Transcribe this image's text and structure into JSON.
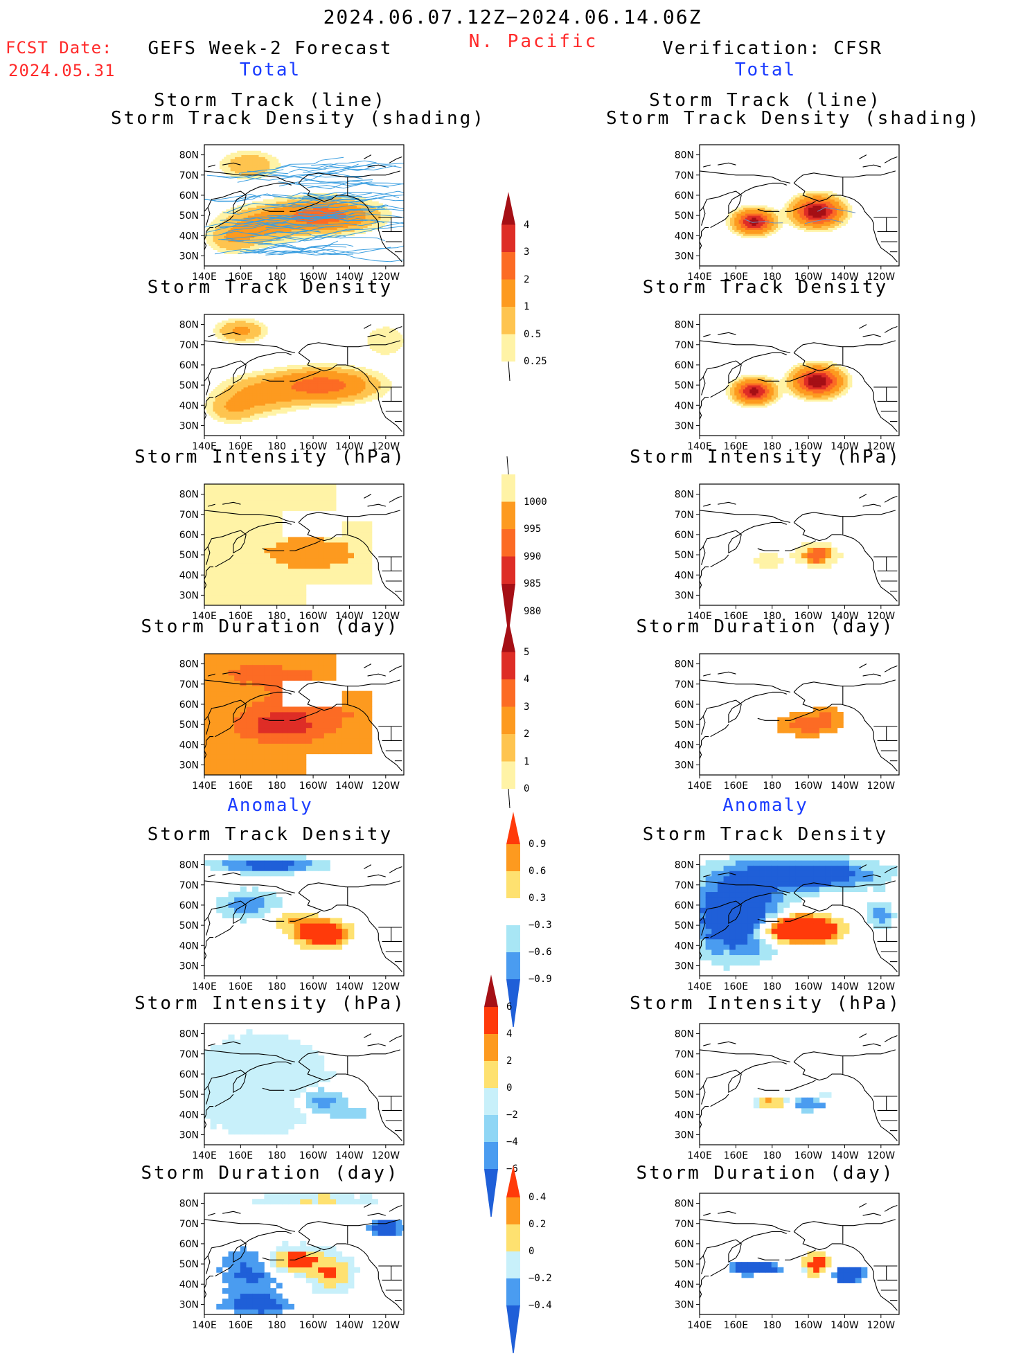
{
  "header": {
    "period": "2024.06.07.12Z−2024.06.14.06Z",
    "region": "N. Pacific",
    "fcst_label": "FCST Date:",
    "fcst_date": "2024.05.31",
    "left_title": "GEFS Week-2 Forecast",
    "right_title": "Verification: CFSR",
    "total_left": "Total",
    "total_right": "Total",
    "anomaly_left": "Anomaly",
    "anomaly_right": "Anomaly"
  },
  "panel_titles": {
    "track": "Storm Track (line)",
    "track_density_shading": "Storm Track Density (shading)",
    "density": "Storm Track Density",
    "intensity": "Storm Intensity (hPa)",
    "duration": "Storm Duration (day)"
  },
  "axes": {
    "lon_ticks": [
      "140E",
      "160E",
      "180",
      "160W",
      "140W",
      "120W"
    ],
    "lat_ticks": [
      "80N",
      "70N",
      "60N",
      "50N",
      "40N",
      "30N"
    ]
  },
  "colorbars": {
    "density": {
      "labels": [
        "4",
        "3",
        "2",
        "1",
        "0.5",
        "0.25"
      ],
      "colors": [
        "#a50f15",
        "#de2d26",
        "#fc6b24",
        "#fd9a1f",
        "#fec44f",
        "#fff3a6"
      ]
    },
    "intensity": {
      "labels": [
        "1000",
        "995",
        "990",
        "985",
        "980"
      ],
      "colors": [
        "#fff3a6",
        "#fd9a1f",
        "#fc6b24",
        "#de2d26",
        "#a50f15"
      ]
    },
    "duration": {
      "labels": [
        "5",
        "4",
        "3",
        "2",
        "1",
        "0"
      ],
      "colors": [
        "#a50f15",
        "#de2d26",
        "#fc6b24",
        "#fd9a1f",
        "#fec44f",
        "#fff3a6"
      ]
    },
    "anom_density": {
      "labels": [
        "0.9",
        "0.6",
        "0.3",
        "−0.3",
        "−0.6",
        "−0.9"
      ],
      "colors": [
        "#ff3a0a",
        "#fd9a1f",
        "#fee170",
        "#ffffff",
        "#a8e6f5",
        "#4a9cf0",
        "#1f5fd8"
      ]
    },
    "anom_intensity": {
      "labels": [
        "6",
        "4",
        "2",
        "0",
        "−2",
        "−4",
        "−6"
      ],
      "colors": [
        "#a50f15",
        "#ff3a0a",
        "#fd9a1f",
        "#fee170",
        "#c8f0fa",
        "#8fd6f5",
        "#4a9cf0",
        "#1f5fd8"
      ]
    },
    "anom_duration": {
      "labels": [
        "0.4",
        "0.2",
        "0",
        "−0.2",
        "−0.4"
      ],
      "colors": [
        "#ff3a0a",
        "#fd9a1f",
        "#fee170",
        "#c8f0fa",
        "#4a9cf0",
        "#1f5fd8"
      ]
    }
  },
  "colors": {
    "title_red": "#ff2a2a",
    "title_blue": "#1a3cff",
    "track_line": "#3a9ee0"
  }
}
